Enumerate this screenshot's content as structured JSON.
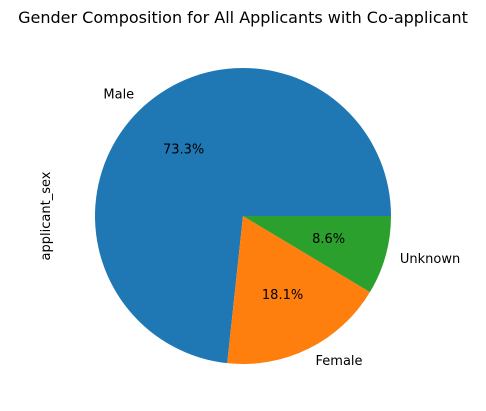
{
  "chart_data": {
    "type": "pie",
    "title": "Gender Composition for All Applicants with Co-applicant",
    "ylabel": "applicant_sex",
    "labels": [
      "Male",
      "Female",
      "Unknown"
    ],
    "values": [
      73.3,
      18.1,
      8.6
    ],
    "value_labels": [
      "73.3%",
      "18.1%",
      "8.6%"
    ],
    "colors": [
      "#1f77b4",
      "#ff7f0e",
      "#2ca02c"
    ],
    "start_angle_deg": 0,
    "direction": "counterclockwise",
    "legend": "none"
  }
}
